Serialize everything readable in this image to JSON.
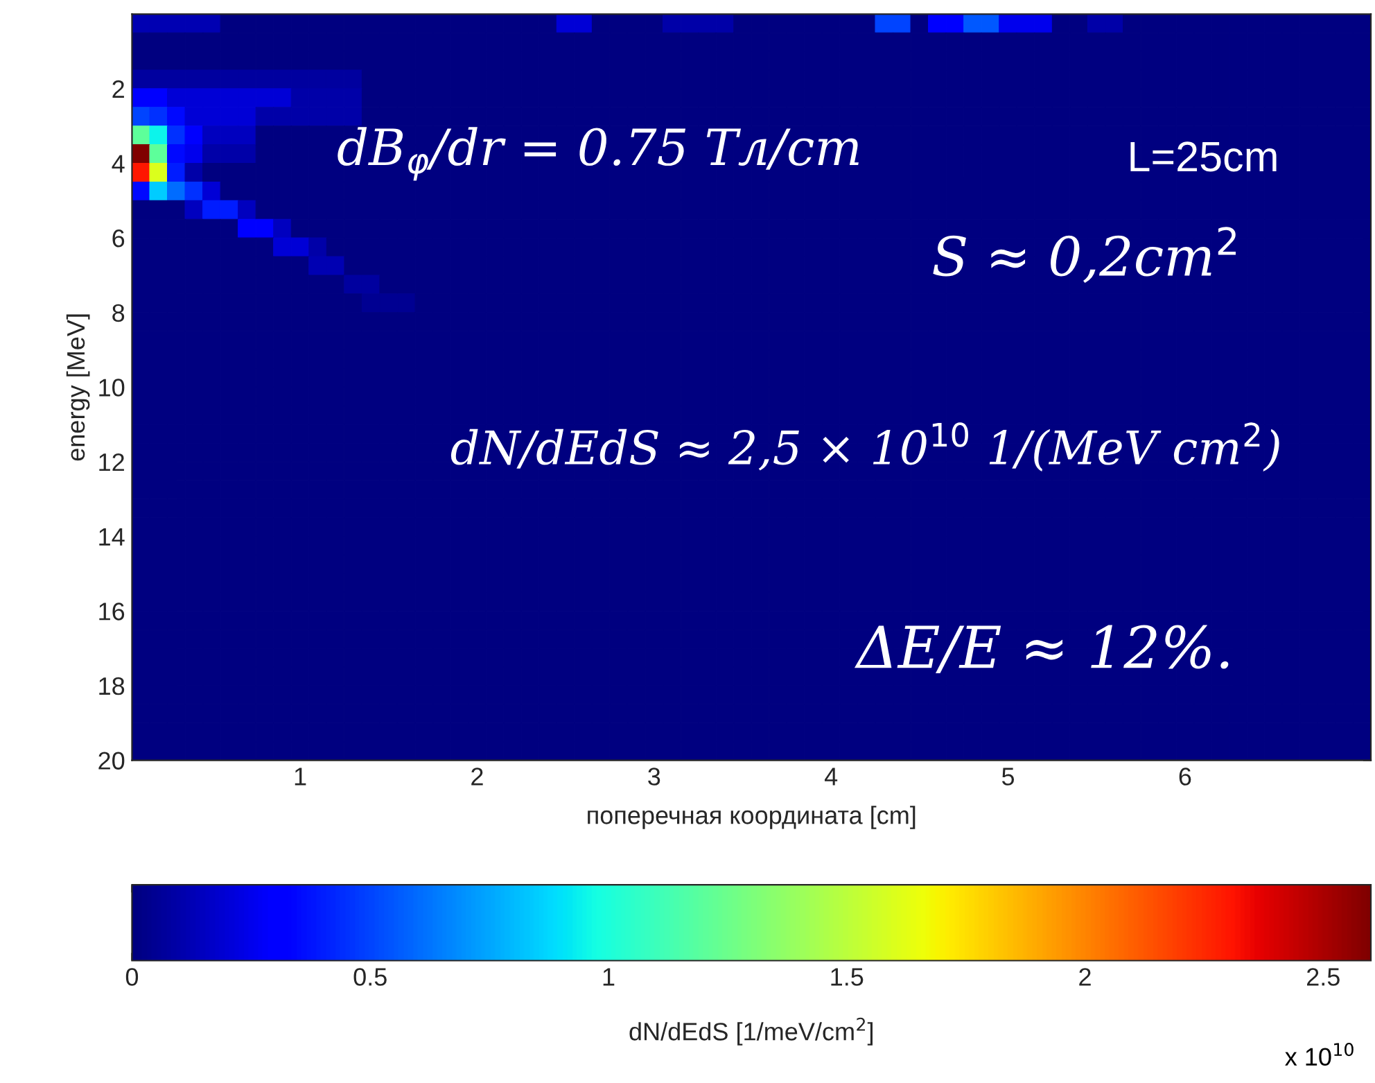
{
  "chart_data": {
    "type": "heatmap",
    "xlabel": "поперечная координата [cm]",
    "ylabel": "energy [MeV]",
    "clabel": "dN/dEdS [1/meV/cm$^{2}$]",
    "annotations": [
      "dB$_{φ}$/dr = 0.75 Тл/cm",
      "L=25cm",
      "S ≈ 0,2cm$^{2}$",
      "dN/dEdS ≈ 2,5 × 10$^{10}$ 1/(MeV cm$^{2}$)",
      "ΔE/E ≈ 12%.",
      "x 10$^{10}$"
    ],
    "xlim": [
      0.05,
      7.05
    ],
    "xticks": [
      1,
      2,
      3,
      4,
      5,
      6
    ],
    "ylim": [
      20,
      0
    ],
    "yticks": [
      2,
      4,
      6,
      8,
      10,
      12,
      14,
      16,
      18,
      20
    ],
    "clim": [
      0,
      2.6
    ],
    "cticks": [
      0,
      0.5,
      1,
      1.5,
      2,
      2.5
    ],
    "x": [
      0.1,
      0.2,
      0.3,
      0.4,
      0.5,
      0.6,
      0.7,
      0.8,
      0.9,
      1.0,
      1.1,
      1.2,
      1.3,
      1.4,
      1.5,
      1.6,
      1.7,
      1.8,
      1.9,
      2.0,
      2.1,
      2.2,
      2.3,
      2.4,
      2.5,
      2.6,
      2.7,
      2.8,
      2.9,
      3.0,
      3.1,
      3.2,
      3.3,
      3.4,
      3.5,
      3.6,
      3.7,
      3.8,
      3.9,
      4.0,
      4.1,
      4.2,
      4.3,
      4.4,
      4.5,
      4.6,
      4.7,
      4.8,
      4.9,
      5.0,
      5.1,
      5.2,
      5.3,
      5.4,
      5.5,
      5.6,
      5.7,
      5.8,
      5.9,
      6.0,
      6.1,
      6.2,
      6.3,
      6.4,
      6.5,
      6.6,
      6.7,
      6.8,
      6.9,
      7.0
    ],
    "y": [
      0.25,
      0.75,
      1.25,
      1.75,
      2.25,
      2.75,
      3.25,
      3.75,
      4.25,
      4.75,
      5.25,
      5.75,
      6.25,
      6.75,
      7.25,
      7.75,
      8.25,
      8.75,
      9.25,
      9.75,
      10.25,
      10.75,
      11.25,
      11.75,
      12.25,
      12.75,
      13.25,
      13.75,
      14.25,
      14.75,
      15.25,
      15.75,
      16.25,
      16.75,
      17.25,
      17.75,
      18.25,
      18.75,
      19.25,
      19.75
    ],
    "cells": [
      [
        0.12,
        0.12,
        0.12,
        0.12,
        0.12,
        0,
        0,
        0,
        0,
        0,
        0,
        0,
        0,
        0,
        0,
        0,
        0,
        0,
        0,
        0,
        0,
        0,
        0,
        0,
        0.2,
        0.2,
        0,
        0,
        0,
        0,
        0.1,
        0.1,
        0.1,
        0.1,
        0,
        0,
        0,
        0,
        0,
        0,
        0,
        0,
        0.5,
        0.5,
        0,
        0.3,
        0.3,
        0.55,
        0.55,
        0.25,
        0.25,
        0.25,
        0,
        0,
        0.1,
        0.1,
        0,
        0,
        0,
        0,
        0,
        0,
        0,
        0,
        0,
        0,
        0,
        0,
        0,
        0
      ],
      [
        0,
        0,
        0,
        0,
        0,
        0,
        0,
        0,
        0,
        0,
        0,
        0,
        0,
        0,
        0,
        0,
        0,
        0,
        0,
        0,
        0,
        0,
        0,
        0,
        0,
        0,
        0,
        0,
        0,
        0,
        0,
        0,
        0,
        0,
        0,
        0,
        0,
        0,
        0,
        0,
        0,
        0,
        0,
        0,
        0,
        0,
        0,
        0,
        0,
        0,
        0,
        0,
        0,
        0,
        0,
        0,
        0,
        0,
        0,
        0,
        0,
        0,
        0,
        0,
        0,
        0,
        0,
        0,
        0,
        0
      ],
      [
        0,
        0,
        0,
        0,
        0,
        0,
        0,
        0,
        0,
        0,
        0,
        0,
        0,
        0,
        0,
        0,
        0,
        0,
        0,
        0,
        0,
        0,
        0,
        0,
        0,
        0,
        0,
        0,
        0,
        0,
        0,
        0,
        0,
        0,
        0,
        0,
        0,
        0,
        0,
        0,
        0,
        0,
        0,
        0,
        0,
        0,
        0,
        0,
        0,
        0,
        0,
        0,
        0,
        0,
        0,
        0,
        0,
        0,
        0,
        0,
        0,
        0,
        0,
        0,
        0,
        0,
        0,
        0,
        0,
        0
      ],
      [
        0.08,
        0.08,
        0.08,
        0.08,
        0.08,
        0.08,
        0.08,
        0.08,
        0.08,
        0.08,
        0.08,
        0.08,
        0.08,
        0,
        0,
        0,
        0,
        0,
        0,
        0,
        0,
        0,
        0,
        0,
        0,
        0,
        0,
        0,
        0,
        0,
        0,
        0,
        0,
        0,
        0,
        0,
        0,
        0,
        0,
        0,
        0,
        0,
        0,
        0,
        0,
        0,
        0,
        0,
        0,
        0,
        0,
        0,
        0,
        0,
        0,
        0,
        0,
        0,
        0,
        0,
        0,
        0,
        0,
        0,
        0,
        0,
        0,
        0,
        0,
        0
      ],
      [
        0.3,
        0.3,
        0.2,
        0.2,
        0.2,
        0.2,
        0.2,
        0.2,
        0.2,
        0.1,
        0.1,
        0.1,
        0.1,
        0,
        0,
        0,
        0,
        0,
        0,
        0,
        0,
        0,
        0,
        0,
        0,
        0,
        0,
        0,
        0,
        0,
        0,
        0,
        0,
        0,
        0,
        0,
        0,
        0,
        0,
        0,
        0,
        0,
        0,
        0,
        0,
        0,
        0,
        0,
        0,
        0,
        0,
        0,
        0,
        0,
        0,
        0,
        0,
        0,
        0,
        0,
        0,
        0,
        0,
        0,
        0,
        0,
        0,
        0,
        0,
        0
      ],
      [
        0.5,
        0.45,
        0.35,
        0.2,
        0.2,
        0.2,
        0.2,
        0.1,
        0.1,
        0.1,
        0.1,
        0.1,
        0.1,
        0,
        0,
        0,
        0,
        0,
        0,
        0,
        0,
        0,
        0,
        0,
        0,
        0,
        0,
        0,
        0,
        0,
        0,
        0,
        0,
        0,
        0,
        0,
        0,
        0,
        0,
        0,
        0,
        0,
        0,
        0,
        0,
        0,
        0,
        0,
        0,
        0,
        0,
        0,
        0,
        0,
        0,
        0,
        0,
        0,
        0,
        0,
        0,
        0,
        0,
        0,
        0,
        0,
        0,
        0,
        0,
        0
      ],
      [
        1.2,
        0.95,
        0.45,
        0.3,
        0.15,
        0.15,
        0.15,
        0,
        0,
        0,
        0,
        0,
        0,
        0,
        0,
        0,
        0,
        0,
        0,
        0,
        0,
        0,
        0,
        0,
        0,
        0,
        0,
        0,
        0,
        0,
        0,
        0,
        0,
        0,
        0,
        0,
        0,
        0,
        0,
        0,
        0,
        0,
        0,
        0,
        0,
        0,
        0,
        0,
        0,
        0,
        0,
        0,
        0,
        0,
        0,
        0,
        0,
        0,
        0,
        0,
        0,
        0,
        0,
        0,
        0,
        0,
        0,
        0,
        0,
        0
      ],
      [
        2.6,
        1.2,
        0.35,
        0.25,
        0.1,
        0.1,
        0.1,
        0,
        0,
        0,
        0,
        0,
        0,
        0,
        0,
        0,
        0,
        0,
        0,
        0,
        0,
        0,
        0,
        0,
        0,
        0,
        0,
        0,
        0,
        0,
        0,
        0,
        0,
        0,
        0,
        0,
        0,
        0,
        0,
        0,
        0,
        0,
        0,
        0,
        0,
        0,
        0,
        0,
        0,
        0,
        0,
        0,
        0,
        0,
        0,
        0,
        0,
        0,
        0,
        0,
        0,
        0,
        0,
        0,
        0,
        0,
        0,
        0,
        0,
        0
      ],
      [
        2.3,
        1.6,
        0.4,
        0.1,
        0,
        0,
        0,
        0,
        0,
        0,
        0,
        0,
        0,
        0,
        0,
        0,
        0,
        0,
        0,
        0,
        0,
        0,
        0,
        0,
        0,
        0,
        0,
        0,
        0,
        0,
        0,
        0,
        0,
        0,
        0,
        0,
        0,
        0,
        0,
        0,
        0,
        0,
        0,
        0,
        0,
        0,
        0,
        0,
        0,
        0,
        0,
        0,
        0,
        0,
        0,
        0,
        0,
        0,
        0,
        0,
        0,
        0,
        0,
        0,
        0,
        0,
        0,
        0,
        0,
        0
      ],
      [
        0.35,
        0.85,
        0.6,
        0.45,
        0.2,
        0,
        0,
        0,
        0,
        0,
        0,
        0,
        0,
        0,
        0,
        0,
        0,
        0,
        0,
        0,
        0,
        0,
        0,
        0,
        0,
        0,
        0,
        0,
        0,
        0,
        0,
        0,
        0,
        0,
        0,
        0,
        0,
        0,
        0,
        0,
        0,
        0,
        0,
        0,
        0,
        0,
        0,
        0,
        0,
        0,
        0,
        0,
        0,
        0,
        0,
        0,
        0,
        0,
        0,
        0,
        0,
        0,
        0,
        0,
        0,
        0,
        0,
        0,
        0,
        0
      ],
      [
        0,
        0,
        0,
        0.15,
        0.4,
        0.4,
        0.15,
        0,
        0,
        0,
        0,
        0,
        0,
        0,
        0,
        0,
        0,
        0,
        0,
        0,
        0,
        0,
        0,
        0,
        0,
        0,
        0,
        0,
        0,
        0,
        0,
        0,
        0,
        0,
        0,
        0,
        0,
        0,
        0,
        0,
        0,
        0,
        0,
        0,
        0,
        0,
        0,
        0,
        0,
        0,
        0,
        0,
        0,
        0,
        0,
        0,
        0,
        0,
        0,
        0,
        0,
        0,
        0,
        0,
        0,
        0,
        0,
        0,
        0,
        0
      ],
      [
        0,
        0,
        0,
        0,
        0,
        0,
        0.3,
        0.3,
        0.15,
        0,
        0,
        0,
        0,
        0,
        0,
        0,
        0,
        0,
        0,
        0,
        0,
        0,
        0,
        0,
        0,
        0,
        0,
        0,
        0,
        0,
        0,
        0,
        0,
        0,
        0,
        0,
        0,
        0,
        0,
        0,
        0,
        0,
        0,
        0,
        0,
        0,
        0,
        0,
        0,
        0,
        0,
        0,
        0,
        0,
        0,
        0,
        0,
        0,
        0,
        0,
        0,
        0,
        0,
        0,
        0,
        0,
        0,
        0,
        0,
        0
      ],
      [
        0,
        0,
        0,
        0,
        0,
        0,
        0,
        0,
        0.2,
        0.2,
        0.1,
        0,
        0,
        0,
        0,
        0,
        0,
        0,
        0,
        0,
        0,
        0,
        0,
        0,
        0,
        0,
        0,
        0,
        0,
        0,
        0,
        0,
        0,
        0,
        0,
        0,
        0,
        0,
        0,
        0,
        0,
        0,
        0,
        0,
        0,
        0,
        0,
        0,
        0,
        0,
        0,
        0,
        0,
        0,
        0,
        0,
        0,
        0,
        0,
        0,
        0,
        0,
        0,
        0,
        0,
        0,
        0,
        0,
        0,
        0
      ],
      [
        0,
        0,
        0,
        0,
        0,
        0,
        0,
        0,
        0,
        0,
        0.12,
        0.12,
        0,
        0,
        0,
        0,
        0,
        0,
        0,
        0,
        0,
        0,
        0,
        0,
        0,
        0,
        0,
        0,
        0,
        0,
        0,
        0,
        0,
        0,
        0,
        0,
        0,
        0,
        0,
        0,
        0,
        0,
        0,
        0,
        0,
        0,
        0,
        0,
        0,
        0,
        0,
        0,
        0,
        0,
        0,
        0,
        0,
        0,
        0,
        0,
        0,
        0,
        0,
        0,
        0,
        0,
        0,
        0,
        0,
        0
      ],
      [
        0,
        0,
        0,
        0,
        0,
        0,
        0,
        0,
        0,
        0,
        0,
        0,
        0.08,
        0.08,
        0,
        0,
        0,
        0,
        0,
        0,
        0,
        0,
        0,
        0,
        0,
        0,
        0,
        0,
        0,
        0,
        0,
        0,
        0,
        0,
        0,
        0,
        0,
        0,
        0,
        0,
        0,
        0,
        0,
        0,
        0,
        0,
        0,
        0,
        0,
        0,
        0,
        0,
        0,
        0,
        0,
        0,
        0,
        0,
        0,
        0,
        0,
        0,
        0,
        0,
        0,
        0,
        0,
        0,
        0,
        0
      ],
      [
        0,
        0,
        0,
        0,
        0,
        0,
        0,
        0,
        0,
        0,
        0,
        0,
        0,
        0.05,
        0.05,
        0.05,
        0,
        0,
        0,
        0,
        0,
        0,
        0,
        0,
        0,
        0,
        0,
        0,
        0,
        0,
        0,
        0,
        0,
        0,
        0,
        0,
        0,
        0,
        0,
        0,
        0,
        0,
        0,
        0,
        0,
        0,
        0,
        0,
        0,
        0,
        0,
        0,
        0,
        0,
        0,
        0,
        0,
        0,
        0,
        0,
        0,
        0,
        0,
        0,
        0,
        0,
        0,
        0,
        0,
        0
      ],
      [
        0,
        0,
        0,
        0,
        0,
        0,
        0,
        0,
        0,
        0,
        0,
        0,
        0,
        0,
        0,
        0,
        0,
        0,
        0,
        0,
        0,
        0,
        0,
        0,
        0,
        0,
        0,
        0,
        0,
        0,
        0,
        0,
        0,
        0,
        0,
        0,
        0,
        0,
        0,
        0,
        0,
        0,
        0,
        0,
        0,
        0,
        0,
        0,
        0,
        0,
        0,
        0,
        0,
        0,
        0,
        0,
        0,
        0,
        0,
        0,
        0,
        0,
        0,
        0,
        0,
        0,
        0,
        0,
        0,
        0
      ],
      [
        0,
        0,
        0,
        0,
        0,
        0,
        0,
        0,
        0,
        0,
        0,
        0,
        0,
        0,
        0,
        0,
        0,
        0,
        0,
        0,
        0,
        0,
        0,
        0,
        0,
        0,
        0,
        0,
        0,
        0,
        0,
        0,
        0,
        0,
        0,
        0,
        0,
        0,
        0,
        0,
        0,
        0,
        0,
        0,
        0,
        0,
        0,
        0,
        0,
        0,
        0,
        0,
        0,
        0,
        0,
        0,
        0,
        0,
        0,
        0,
        0,
        0,
        0,
        0,
        0,
        0,
        0,
        0,
        0,
        0
      ],
      [
        0,
        0,
        0,
        0,
        0,
        0,
        0,
        0,
        0,
        0,
        0,
        0,
        0,
        0,
        0,
        0,
        0,
        0,
        0,
        0,
        0,
        0,
        0,
        0,
        0,
        0,
        0,
        0,
        0,
        0,
        0,
        0,
        0,
        0,
        0,
        0,
        0,
        0,
        0,
        0,
        0,
        0,
        0,
        0,
        0,
        0,
        0,
        0,
        0,
        0,
        0,
        0,
        0,
        0,
        0,
        0,
        0,
        0,
        0,
        0,
        0,
        0,
        0,
        0,
        0,
        0,
        0,
        0,
        0,
        0
      ],
      [
        0,
        0,
        0,
        0,
        0,
        0,
        0,
        0,
        0,
        0,
        0,
        0,
        0,
        0,
        0,
        0,
        0,
        0,
        0,
        0,
        0,
        0,
        0,
        0,
        0,
        0,
        0,
        0,
        0,
        0,
        0,
        0,
        0,
        0,
        0,
        0,
        0,
        0,
        0,
        0,
        0,
        0,
        0,
        0,
        0,
        0,
        0,
        0,
        0,
        0,
        0,
        0,
        0,
        0,
        0,
        0,
        0,
        0,
        0,
        0,
        0,
        0,
        0,
        0,
        0,
        0,
        0,
        0,
        0,
        0
      ],
      [
        0,
        0,
        0,
        0,
        0,
        0,
        0,
        0,
        0,
        0,
        0,
        0,
        0,
        0,
        0,
        0,
        0,
        0,
        0,
        0,
        0,
        0,
        0,
        0,
        0,
        0,
        0,
        0,
        0,
        0,
        0,
        0,
        0,
        0,
        0,
        0,
        0,
        0,
        0,
        0,
        0,
        0,
        0,
        0,
        0,
        0,
        0,
        0,
        0,
        0,
        0,
        0,
        0,
        0,
        0,
        0,
        0,
        0,
        0,
        0,
        0,
        0,
        0,
        0,
        0,
        0,
        0,
        0,
        0,
        0
      ],
      [
        0,
        0,
        0,
        0,
        0,
        0,
        0,
        0,
        0,
        0,
        0,
        0,
        0,
        0,
        0,
        0,
        0,
        0,
        0,
        0,
        0,
        0,
        0,
        0,
        0,
        0,
        0,
        0,
        0,
        0,
        0,
        0,
        0,
        0,
        0,
        0,
        0,
        0,
        0,
        0,
        0,
        0,
        0,
        0,
        0,
        0,
        0,
        0,
        0,
        0,
        0,
        0,
        0,
        0,
        0,
        0,
        0,
        0,
        0,
        0,
        0,
        0,
        0,
        0,
        0,
        0,
        0,
        0,
        0,
        0
      ],
      [
        0,
        0,
        0,
        0,
        0,
        0,
        0,
        0,
        0,
        0,
        0,
        0,
        0,
        0,
        0,
        0,
        0,
        0,
        0,
        0,
        0,
        0,
        0,
        0,
        0,
        0,
        0,
        0,
        0,
        0,
        0,
        0,
        0,
        0,
        0,
        0,
        0,
        0,
        0,
        0,
        0,
        0,
        0,
        0,
        0,
        0,
        0,
        0,
        0,
        0,
        0,
        0,
        0,
        0,
        0,
        0,
        0,
        0,
        0,
        0,
        0,
        0,
        0,
        0,
        0,
        0,
        0,
        0,
        0,
        0
      ],
      [
        0,
        0,
        0,
        0,
        0,
        0,
        0,
        0,
        0,
        0,
        0,
        0,
        0,
        0,
        0,
        0,
        0,
        0,
        0,
        0,
        0,
        0,
        0,
        0,
        0,
        0,
        0,
        0,
        0,
        0,
        0,
        0,
        0,
        0,
        0,
        0,
        0,
        0,
        0,
        0,
        0,
        0,
        0,
        0,
        0,
        0,
        0,
        0,
        0,
        0,
        0,
        0,
        0,
        0,
        0,
        0,
        0,
        0,
        0,
        0,
        0,
        0,
        0,
        0,
        0,
        0,
        0,
        0,
        0,
        0
      ],
      [
        0,
        0,
        0,
        0,
        0,
        0,
        0,
        0,
        0,
        0,
        0,
        0,
        0,
        0,
        0,
        0,
        0,
        0,
        0,
        0,
        0,
        0,
        0,
        0,
        0,
        0,
        0,
        0,
        0,
        0,
        0,
        0,
        0,
        0,
        0,
        0,
        0,
        0,
        0,
        0,
        0,
        0,
        0,
        0,
        0,
        0,
        0,
        0,
        0,
        0,
        0,
        0,
        0,
        0,
        0,
        0,
        0,
        0,
        0,
        0,
        0,
        0,
        0,
        0,
        0,
        0,
        0,
        0,
        0,
        0
      ],
      [
        0,
        0,
        0,
        0,
        0,
        0,
        0,
        0,
        0,
        0,
        0,
        0,
        0,
        0,
        0,
        0,
        0,
        0,
        0,
        0,
        0,
        0,
        0,
        0,
        0,
        0,
        0,
        0,
        0,
        0,
        0,
        0,
        0,
        0,
        0,
        0,
        0,
        0,
        0,
        0,
        0,
        0,
        0,
        0,
        0,
        0,
        0,
        0,
        0,
        0,
        0,
        0,
        0,
        0,
        0,
        0,
        0,
        0,
        0,
        0,
        0,
        0,
        0,
        0,
        0,
        0,
        0,
        0,
        0,
        0
      ],
      [
        0,
        0,
        0,
        0,
        0,
        0,
        0,
        0,
        0,
        0,
        0,
        0,
        0,
        0,
        0,
        0,
        0,
        0,
        0,
        0,
        0,
        0,
        0,
        0,
        0,
        0,
        0,
        0,
        0,
        0,
        0,
        0,
        0,
        0,
        0,
        0,
        0,
        0,
        0,
        0,
        0,
        0,
        0,
        0,
        0,
        0,
        0,
        0,
        0,
        0,
        0,
        0,
        0,
        0,
        0,
        0,
        0,
        0,
        0,
        0,
        0,
        0,
        0,
        0,
        0,
        0,
        0,
        0,
        0,
        0
      ],
      [
        0,
        0,
        0,
        0,
        0,
        0,
        0,
        0,
        0,
        0,
        0,
        0,
        0,
        0,
        0,
        0,
        0,
        0,
        0,
        0,
        0,
        0,
        0,
        0,
        0,
        0,
        0,
        0,
        0,
        0,
        0,
        0,
        0,
        0,
        0,
        0,
        0,
        0,
        0,
        0,
        0,
        0,
        0,
        0,
        0,
        0,
        0,
        0,
        0,
        0,
        0,
        0,
        0,
        0,
        0,
        0,
        0,
        0,
        0,
        0,
        0,
        0,
        0,
        0,
        0,
        0,
        0,
        0,
        0,
        0
      ],
      [
        0,
        0,
        0,
        0,
        0,
        0,
        0,
        0,
        0,
        0,
        0,
        0,
        0,
        0,
        0,
        0,
        0,
        0,
        0,
        0,
        0,
        0,
        0,
        0,
        0,
        0,
        0,
        0,
        0,
        0,
        0,
        0,
        0,
        0,
        0,
        0,
        0,
        0,
        0,
        0,
        0,
        0,
        0,
        0,
        0,
        0,
        0,
        0,
        0,
        0,
        0,
        0,
        0,
        0,
        0,
        0,
        0,
        0,
        0,
        0,
        0,
        0,
        0,
        0,
        0,
        0,
        0,
        0,
        0,
        0
      ],
      [
        0,
        0,
        0,
        0,
        0,
        0,
        0,
        0,
        0,
        0,
        0,
        0,
        0,
        0,
        0,
        0,
        0,
        0,
        0,
        0,
        0,
        0,
        0,
        0,
        0,
        0,
        0,
        0,
        0,
        0,
        0,
        0,
        0,
        0,
        0,
        0,
        0,
        0,
        0,
        0,
        0,
        0,
        0,
        0,
        0,
        0,
        0,
        0,
        0,
        0,
        0,
        0,
        0,
        0,
        0,
        0,
        0,
        0,
        0,
        0,
        0,
        0,
        0,
        0,
        0,
        0,
        0,
        0,
        0,
        0
      ],
      [
        0,
        0,
        0,
        0,
        0,
        0,
        0,
        0,
        0,
        0,
        0,
        0,
        0,
        0,
        0,
        0,
        0,
        0,
        0,
        0,
        0,
        0,
        0,
        0,
        0,
        0,
        0,
        0,
        0,
        0,
        0,
        0,
        0,
        0,
        0,
        0,
        0,
        0,
        0,
        0,
        0,
        0,
        0,
        0,
        0,
        0,
        0,
        0,
        0,
        0,
        0,
        0,
        0,
        0,
        0,
        0,
        0,
        0,
        0,
        0,
        0,
        0,
        0,
        0,
        0,
        0,
        0,
        0,
        0,
        0
      ],
      [
        0,
        0,
        0,
        0,
        0,
        0,
        0,
        0,
        0,
        0,
        0,
        0,
        0,
        0,
        0,
        0,
        0,
        0,
        0,
        0,
        0,
        0,
        0,
        0,
        0,
        0,
        0,
        0,
        0,
        0,
        0,
        0,
        0,
        0,
        0,
        0,
        0,
        0,
        0,
        0,
        0,
        0,
        0,
        0,
        0,
        0,
        0,
        0,
        0,
        0,
        0,
        0,
        0,
        0,
        0,
        0,
        0,
        0,
        0,
        0,
        0,
        0,
        0,
        0,
        0,
        0,
        0,
        0,
        0,
        0
      ],
      [
        0,
        0,
        0,
        0,
        0,
        0,
        0,
        0,
        0,
        0,
        0,
        0,
        0,
        0,
        0,
        0,
        0,
        0,
        0,
        0,
        0,
        0,
        0,
        0,
        0,
        0,
        0,
        0,
        0,
        0,
        0,
        0,
        0,
        0,
        0,
        0,
        0,
        0,
        0,
        0,
        0,
        0,
        0,
        0,
        0,
        0,
        0,
        0,
        0,
        0,
        0,
        0,
        0,
        0,
        0,
        0,
        0,
        0,
        0,
        0,
        0,
        0,
        0,
        0,
        0,
        0,
        0,
        0,
        0,
        0
      ],
      [
        0,
        0,
        0,
        0,
        0,
        0,
        0,
        0,
        0,
        0,
        0,
        0,
        0,
        0,
        0,
        0,
        0,
        0,
        0,
        0,
        0,
        0,
        0,
        0,
        0,
        0,
        0,
        0,
        0,
        0,
        0,
        0,
        0,
        0,
        0,
        0,
        0,
        0,
        0,
        0,
        0,
        0,
        0,
        0,
        0,
        0,
        0,
        0,
        0,
        0,
        0,
        0,
        0,
        0,
        0,
        0,
        0,
        0,
        0,
        0,
        0,
        0,
        0,
        0,
        0,
        0,
        0,
        0,
        0,
        0
      ],
      [
        0,
        0,
        0,
        0,
        0,
        0,
        0,
        0,
        0,
        0,
        0,
        0,
        0,
        0,
        0,
        0,
        0,
        0,
        0,
        0,
        0,
        0,
        0,
        0,
        0,
        0,
        0,
        0,
        0,
        0,
        0,
        0,
        0,
        0,
        0,
        0,
        0,
        0,
        0,
        0,
        0,
        0,
        0,
        0,
        0,
        0,
        0,
        0,
        0,
        0,
        0,
        0,
        0,
        0,
        0,
        0,
        0,
        0,
        0,
        0,
        0,
        0,
        0,
        0,
        0,
        0,
        0,
        0,
        0,
        0
      ],
      [
        0,
        0,
        0,
        0,
        0,
        0,
        0,
        0,
        0,
        0,
        0,
        0,
        0,
        0,
        0,
        0,
        0,
        0,
        0,
        0,
        0,
        0,
        0,
        0,
        0,
        0,
        0,
        0,
        0,
        0,
        0,
        0,
        0,
        0,
        0,
        0,
        0,
        0,
        0,
        0,
        0,
        0,
        0,
        0,
        0,
        0,
        0,
        0,
        0,
        0,
        0,
        0,
        0,
        0,
        0,
        0,
        0,
        0,
        0,
        0,
        0,
        0,
        0,
        0,
        0,
        0,
        0,
        0,
        0,
        0
      ],
      [
        0,
        0,
        0,
        0,
        0,
        0,
        0,
        0,
        0,
        0,
        0,
        0,
        0,
        0,
        0,
        0,
        0,
        0,
        0,
        0,
        0,
        0,
        0,
        0,
        0,
        0,
        0,
        0,
        0,
        0,
        0,
        0,
        0,
        0,
        0,
        0,
        0,
        0,
        0,
        0,
        0,
        0,
        0,
        0,
        0,
        0,
        0,
        0,
        0,
        0,
        0,
        0,
        0,
        0,
        0,
        0,
        0,
        0,
        0,
        0,
        0,
        0,
        0,
        0,
        0,
        0,
        0,
        0,
        0,
        0
      ],
      [
        0,
        0,
        0,
        0,
        0,
        0,
        0,
        0,
        0,
        0,
        0,
        0,
        0,
        0,
        0,
        0,
        0,
        0,
        0,
        0,
        0,
        0,
        0,
        0,
        0,
        0,
        0,
        0,
        0,
        0,
        0,
        0,
        0,
        0,
        0,
        0,
        0,
        0,
        0,
        0,
        0,
        0,
        0,
        0,
        0,
        0,
        0,
        0,
        0,
        0,
        0,
        0,
        0,
        0,
        0,
        0,
        0,
        0,
        0,
        0,
        0,
        0,
        0,
        0,
        0,
        0,
        0,
        0,
        0,
        0
      ],
      [
        0,
        0,
        0,
        0,
        0,
        0,
        0,
        0,
        0,
        0,
        0,
        0,
        0,
        0,
        0,
        0,
        0,
        0,
        0,
        0,
        0,
        0,
        0,
        0,
        0,
        0,
        0,
        0,
        0,
        0,
        0,
        0,
        0,
        0,
        0,
        0,
        0,
        0,
        0,
        0,
        0,
        0,
        0,
        0,
        0,
        0,
        0,
        0,
        0,
        0,
        0,
        0,
        0,
        0,
        0,
        0,
        0,
        0,
        0,
        0,
        0,
        0,
        0,
        0,
        0,
        0,
        0,
        0,
        0,
        0
      ],
      [
        0,
        0,
        0,
        0,
        0,
        0,
        0,
        0,
        0,
        0,
        0,
        0,
        0,
        0,
        0,
        0,
        0,
        0,
        0,
        0,
        0,
        0,
        0,
        0,
        0,
        0,
        0,
        0,
        0,
        0,
        0,
        0,
        0,
        0,
        0,
        0,
        0,
        0,
        0,
        0,
        0,
        0,
        0,
        0,
        0,
        0,
        0,
        0,
        0,
        0,
        0,
        0,
        0,
        0,
        0,
        0,
        0,
        0,
        0,
        0,
        0,
        0,
        0,
        0,
        0,
        0,
        0,
        0,
        0,
        0
      ]
    ]
  }
}
